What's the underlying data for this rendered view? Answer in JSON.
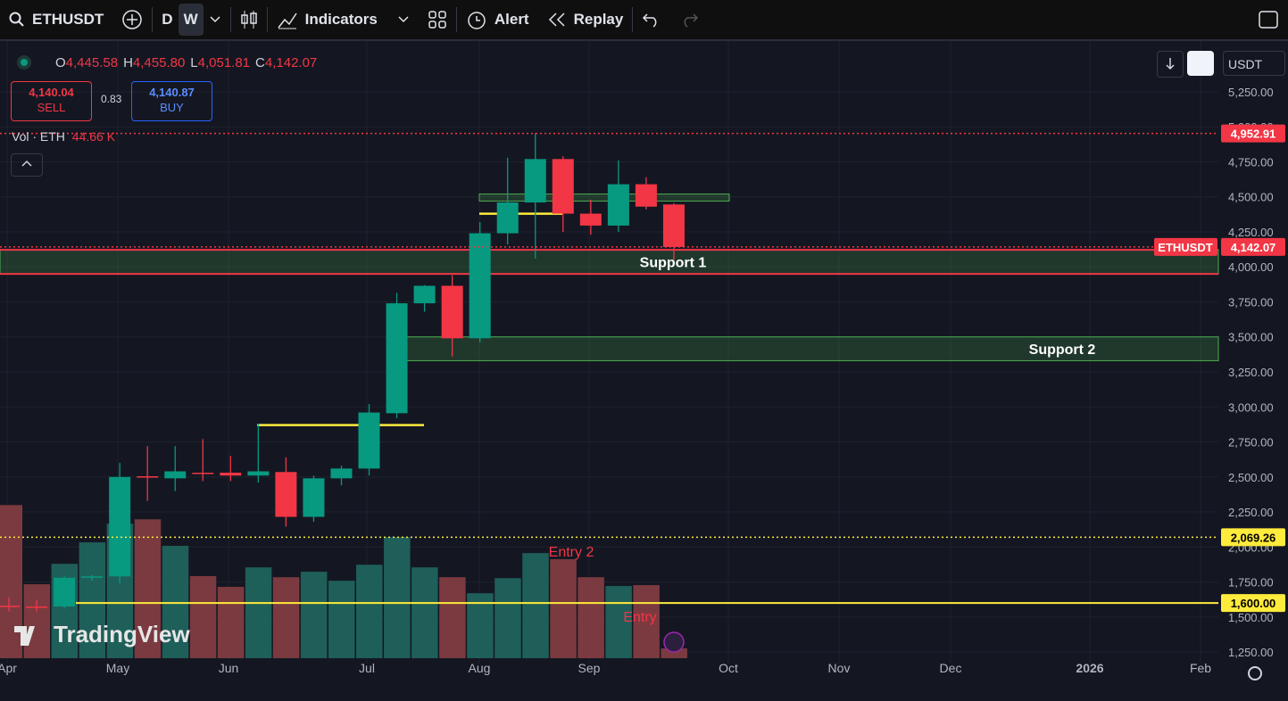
{
  "toolbar": {
    "symbol": "ETHUSDT",
    "intervals": [
      "D",
      "W"
    ],
    "indicators": "Indicators",
    "alert": "Alert",
    "replay": "Replay"
  },
  "legend": {
    "ohlc": [
      {
        "key": "O",
        "value": "4,445.58"
      },
      {
        "key": "H",
        "value": "4,455.80"
      },
      {
        "key": "L",
        "value": "4,051.81"
      },
      {
        "key": "C",
        "value": "4,142.07"
      }
    ],
    "sell_price": "4,140.04",
    "sell": "SELL",
    "spread": "0.83",
    "buy_price": "4,140.87",
    "buy": "BUY",
    "volume_name": "Vol · ETH",
    "volume_value": "44.66 K"
  },
  "currency": "USDT",
  "watermark": "TradingView",
  "chart_data": {
    "type": "candlestick",
    "series": [
      {
        "name": "ETHUSDT",
        "open": [
          1580,
          1575,
          1575,
          1780,
          1790,
          2505,
          2490,
          2530,
          2530,
          2510,
          2535,
          2215,
          2490,
          2560,
          2955,
          3740,
          3865,
          3490,
          4240,
          4460,
          4770,
          4380,
          4295,
          4590,
          4445.58
        ],
        "high": [
          1640,
          1620,
          1790,
          1800,
          2600,
          2720,
          2720,
          2770,
          2650,
          2880,
          2640,
          2510,
          2580,
          3020,
          3815,
          3870,
          3940,
          4320,
          4780,
          4955,
          4790,
          4480,
          4760,
          4640,
          4455.8
        ],
        "low": [
          1540,
          1540,
          1560,
          1760,
          1740,
          2330,
          2400,
          2470,
          2470,
          2460,
          2145,
          2180,
          2440,
          2510,
          2920,
          3680,
          3360,
          3460,
          4160,
          4060,
          4250,
          4230,
          4250,
          4410,
          4051.81
        ],
        "close": [
          1575,
          1570,
          1780,
          1790,
          2500,
          2495,
          2540,
          2525,
          2510,
          2540,
          2215,
          2490,
          2560,
          2960,
          3740,
          3865,
          3490,
          4240,
          4460,
          4770,
          4380,
          4295,
          4590,
          4430,
          4142.07
        ]
      }
    ],
    "volume": [
      698,
      337,
      430,
      528,
      613,
      633,
      512,
      374,
      325,
      414,
      369,
      394,
      353,
      426,
      552,
      414,
      369,
      296,
      365,
      479,
      451,
      369,
      329,
      333,
      44.66
    ],
    "volume_lim": [
      0,
      1000
    ],
    "colors": {
      "up": "#089981",
      "down": "#f23645",
      "volume_up": "#1f5f59",
      "volume_down": "#7b3a40"
    },
    "ylim": [
      1193,
      5600
    ],
    "yticks": [
      {
        "value": 5250,
        "label": "5,250.00"
      },
      {
        "value": 5000,
        "label": "5,000.00"
      },
      {
        "value": 4750,
        "label": "4,750.00"
      },
      {
        "value": 4500,
        "label": "4,500.00"
      },
      {
        "value": 4250,
        "label": "4,250.00"
      },
      {
        "value": 4000,
        "label": "4,000.00"
      },
      {
        "value": 3750,
        "label": "3,750.00"
      },
      {
        "value": 3500,
        "label": "3,500.00"
      },
      {
        "value": 3250,
        "label": "3,250.00"
      },
      {
        "value": 3000,
        "label": "3,000.00"
      },
      {
        "value": 2750,
        "label": "2,750.00"
      },
      {
        "value": 2500,
        "label": "2,500.00"
      },
      {
        "value": 2250,
        "label": "2,250.00"
      },
      {
        "value": 2000,
        "label": "2,000.00"
      },
      {
        "value": 1750,
        "label": "1,750.00"
      },
      {
        "value": 1500,
        "label": "1,500.00"
      },
      {
        "value": 1250,
        "label": "1,250.00"
      }
    ],
    "x_labels": [
      "Apr",
      "May",
      "Jun",
      "Jul",
      "Aug",
      "Sep",
      "Oct",
      "Nov",
      "Dec",
      "2026",
      "Feb"
    ],
    "price_lines": [
      {
        "value": 4952.91,
        "label": "4,952.91",
        "color": "#f23645",
        "style": "dotted"
      },
      {
        "value": 4142.07,
        "label": "4,142.07",
        "color": "#f23645",
        "style": "dotted"
      },
      {
        "value": 2069.26,
        "label": "2,069.26",
        "color": "#ffeb3b",
        "style": "dotted"
      },
      {
        "value": 1600,
        "label": "1,600.00",
        "color": "#ffeb3b",
        "style": "solid"
      }
    ],
    "zones": [
      {
        "from": 3950,
        "to": 4122,
        "label": "Support 1",
        "border": "#f23645"
      },
      {
        "from": 3330,
        "to": 3500,
        "label": "Support 2",
        "border": "#4caf50"
      },
      {
        "from": 4470,
        "to": 4520,
        "border": "#4caf50"
      }
    ],
    "levels": [
      {
        "value": 2870,
        "color": "#ffeb3b"
      },
      {
        "value": 4380,
        "color": "#ffeb3b"
      }
    ],
    "annotations": [
      "Entry 2",
      "Entry"
    ]
  }
}
